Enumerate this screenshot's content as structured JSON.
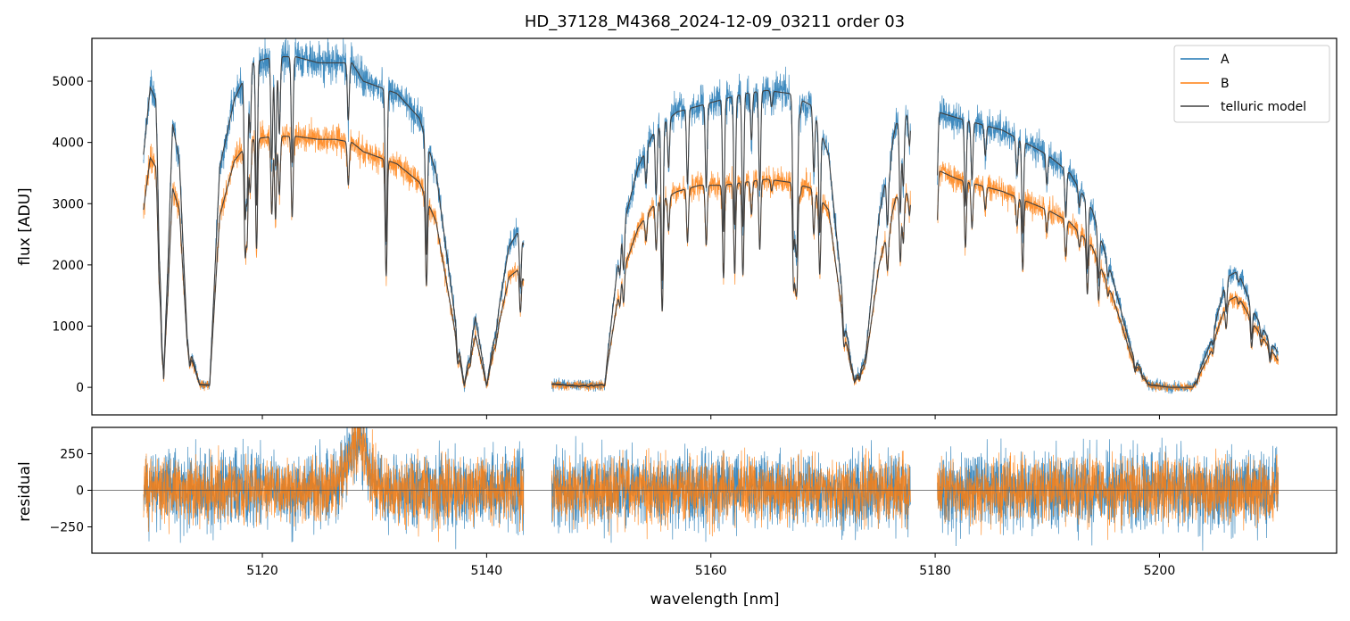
{
  "chart_data": [
    {
      "type": "line",
      "title": "HD_37128_M4368_2024-12-09_03211  order 03",
      "xlabel": "",
      "ylabel": "flux [ADU]",
      "xlim": [
        5104.8,
        5215.8
      ],
      "ylim": [
        -450,
        5700
      ],
      "x_ticks": [
        5120,
        5140,
        5160,
        5180,
        5200
      ],
      "y_ticks": [
        0,
        1000,
        2000,
        3000,
        4000,
        5000
      ],
      "y_tick_labels": [
        "0",
        "1000",
        "2000",
        "3000",
        "4000",
        "5000"
      ],
      "x_tick_labels_visible": false,
      "grid": false,
      "legend": "top-right",
      "segments": [
        [
          5109.4,
          5143.3
        ],
        [
          5145.8,
          5177.8
        ],
        [
          5180.2,
          5210.6
        ]
      ],
      "series": [
        {
          "name": "A",
          "color": "#1f77b4",
          "noise": 110,
          "x": [
            5109.4,
            5110.0,
            5110.5,
            5111.2,
            5112.0,
            5112.6,
            5113.3,
            5114.4,
            5115.3,
            5116.2,
            5117.5,
            5119.0,
            5121.0,
            5123.0,
            5125.0,
            5126.5,
            5128.0,
            5129.0,
            5130.5,
            5132.0,
            5134.0,
            5135.5,
            5137.0,
            5138.0,
            5139.0,
            5140.0,
            5141.0,
            5142.0,
            5143.0,
            5145.8,
            5148.0,
            5150.5,
            5152.0,
            5153.5,
            5155.0,
            5157.0,
            5159.0,
            5161.0,
            5163.0,
            5165.0,
            5167.0,
            5169.0,
            5170.5,
            5172.0,
            5172.8,
            5173.8,
            5175.0,
            5176.5,
            5177.8,
            5180.2,
            5182.0,
            5184.0,
            5186.0,
            5188.0,
            5190.0,
            5192.0,
            5194.0,
            5195.8,
            5197.5,
            5199.0,
            5201.0,
            5203.0,
            5204.5,
            5206.0,
            5207.0,
            5208.5,
            5210.0,
            5210.6
          ],
          "values": [
            3800,
            4900,
            4700,
            150,
            4300,
            3700,
            800,
            50,
            40,
            3600,
            4700,
            5300,
            5400,
            5400,
            5300,
            5300,
            5300,
            5000,
            4900,
            4800,
            4400,
            3500,
            1400,
            30,
            1150,
            40,
            1200,
            2300,
            2600,
            60,
            30,
            50,
            2500,
            3600,
            4200,
            4500,
            4600,
            4700,
            4800,
            4850,
            4800,
            4600,
            3800,
            1000,
            100,
            500,
            2800,
            4300,
            4500,
            4500,
            4400,
            4300,
            4200,
            4000,
            3800,
            3500,
            2900,
            1800,
            600,
            50,
            0,
            0,
            700,
            1800,
            1900,
            1200,
            700,
            600
          ]
        },
        {
          "name": "B",
          "color": "#ff7f0e",
          "noise": 100,
          "x": [
            5109.4,
            5110.0,
            5110.5,
            5111.2,
            5112.0,
            5112.6,
            5113.3,
            5114.4,
            5115.3,
            5116.2,
            5117.5,
            5119.0,
            5121.0,
            5123.0,
            5125.0,
            5126.5,
            5128.0,
            5129.0,
            5130.5,
            5132.0,
            5134.0,
            5135.5,
            5137.0,
            5138.0,
            5139.0,
            5140.0,
            5141.0,
            5142.0,
            5143.0,
            5145.8,
            5148.0,
            5150.5,
            5152.0,
            5153.5,
            5155.0,
            5157.0,
            5159.0,
            5161.0,
            5163.0,
            5165.0,
            5167.0,
            5169.0,
            5170.5,
            5172.0,
            5172.8,
            5173.8,
            5175.0,
            5176.5,
            5177.8,
            5180.2,
            5182.0,
            5184.0,
            5186.0,
            5188.0,
            5190.0,
            5192.0,
            5194.0,
            5195.8,
            5197.5,
            5199.0,
            5201.0,
            5203.0,
            5204.5,
            5206.0,
            5207.0,
            5208.5,
            5210.0,
            5210.6
          ],
          "values": [
            2900,
            3750,
            3600,
            150,
            3250,
            2900,
            700,
            40,
            30,
            2800,
            3700,
            4050,
            4100,
            4100,
            4050,
            4050,
            4000,
            3850,
            3750,
            3650,
            3350,
            2700,
            1100,
            20,
            850,
            30,
            950,
            1800,
            1950,
            50,
            20,
            40,
            1800,
            2600,
            3000,
            3200,
            3300,
            3300,
            3350,
            3400,
            3350,
            3250,
            2900,
            800,
            80,
            400,
            2000,
            3100,
            3200,
            3550,
            3400,
            3300,
            3200,
            3050,
            2900,
            2700,
            2300,
            1500,
            500,
            40,
            0,
            0,
            550,
            1400,
            1500,
            1000,
            600,
            450
          ]
        },
        {
          "name": "telluric model",
          "color": "#404040",
          "noise": 0,
          "x": [],
          "values": []
        }
      ]
    },
    {
      "type": "line",
      "title": "",
      "xlabel": "wavelength [nm]",
      "ylabel": "residual",
      "xlim": [
        5104.8,
        5215.8
      ],
      "ylim": [
        -430,
        430
      ],
      "x_ticks": [
        5120,
        5140,
        5160,
        5180,
        5200
      ],
      "x_tick_labels": [
        "5120",
        "5140",
        "5160",
        "5180",
        "5200"
      ],
      "y_ticks": [
        -250,
        0,
        250
      ],
      "y_tick_labels": [
        "−250",
        "0",
        "250"
      ],
      "zero_line": 0,
      "grid": false,
      "segments": [
        [
          5109.4,
          5143.3
        ],
        [
          5145.8,
          5177.8
        ],
        [
          5180.2,
          5210.6
        ]
      ],
      "series": [
        {
          "name": "A",
          "color": "#1f77b4",
          "noise": 130
        },
        {
          "name": "B",
          "color": "#ff7f0e",
          "noise": 110
        }
      ],
      "bump": {
        "center": 5128.5,
        "width": 1.3,
        "height": 330
      }
    }
  ]
}
